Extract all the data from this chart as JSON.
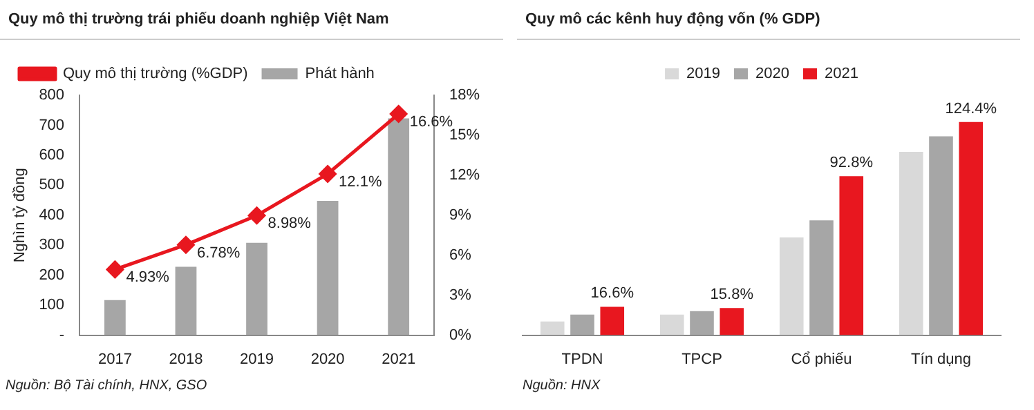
{
  "chart_data": [
    {
      "type": "bar",
      "title": "Quy mô thị trường trái phiếu doanh nghiệp Việt Nam",
      "ylabel": "Nghìn tỷ đồng",
      "categories": [
        "2017",
        "2018",
        "2019",
        "2020",
        "2021"
      ],
      "series": [
        {
          "name": "Phát hành",
          "color": "#a6a6a6",
          "values": [
            117,
            228,
            308,
            448,
            723
          ]
        },
        {
          "name": "Quy mô thị trường (%GDP)",
          "type": "line",
          "axis": "y2",
          "color": "#e8171f",
          "values": [
            4.93,
            6.78,
            8.98,
            12.1,
            16.6
          ],
          "value_labels": [
            "4.93%",
            "6.78%",
            "8.98%",
            "12.1%",
            "16.6%"
          ]
        }
      ],
      "ylim": [
        0,
        800
      ],
      "yticks": [
        {
          "value": 0,
          "label": "-"
        },
        100,
        200,
        300,
        400,
        500,
        600,
        700,
        800
      ],
      "y2lim": [
        0,
        18
      ],
      "y2ticks": [
        {
          "value": 0,
          "label": "0%"
        },
        {
          "value": 3,
          "label": "3%"
        },
        {
          "value": 6,
          "label": "6%"
        },
        {
          "value": 9,
          "label": "9%"
        },
        {
          "value": 12,
          "label": "12%"
        },
        {
          "value": 15,
          "label": "15%"
        },
        {
          "value": 18,
          "label": "18%"
        }
      ],
      "marker": "diamond",
      "line_style": "solid",
      "grid": false,
      "legend": "top left",
      "annotations": [
        "Nguồn: Bộ Tài chính, HNX, GSO"
      ]
    },
    {
      "type": "bar",
      "title": "Quy mô các kênh huy động vốn (% GDP)",
      "categories": [
        "TPDN",
        "TPCP",
        "Cổ phiếu",
        "Tín dụng"
      ],
      "series": [
        {
          "name": "2019",
          "color": "#d9d9d9",
          "values": [
            8,
            12,
            57,
            107
          ]
        },
        {
          "name": "2020",
          "color": "#a6a6a6",
          "values": [
            12,
            14,
            67,
            116
          ]
        },
        {
          "name": "2021",
          "color": "#e8171f",
          "values": [
            16.6,
            15.8,
            92.8,
            124.4
          ],
          "value_labels": [
            "16.6%",
            "15.8%",
            "92.8%",
            "124.4%"
          ]
        }
      ],
      "grid": false,
      "legend": "top",
      "tick_labels": "x",
      "annotations": [
        "Nguồn: HNX"
      ]
    }
  ]
}
